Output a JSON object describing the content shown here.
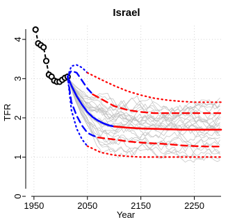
{
  "chart_data": {
    "type": "line",
    "title": "Israel",
    "xlabel": "Year",
    "ylabel": "TFR",
    "xlim": [
      1945,
      2300
    ],
    "ylim": [
      0,
      4.35
    ],
    "x_ticks": [
      1950,
      2050,
      2150,
      2250
    ],
    "y_ticks": [
      0,
      1,
      2,
      3,
      4
    ],
    "grid": true,
    "legend": "none",
    "colors": {
      "observed": "#000000",
      "trajectories": "#bdbdbd",
      "median_projection": "#0000ff",
      "median_extended": "#ff0000",
      "pi80_projection": "#0000ff",
      "pi80_extended": "#ff0000",
      "pi95_projection": "#0000ff",
      "pi95_extended": "#ff0000",
      "grid": "#d3d3d3"
    },
    "series": [
      {
        "role": "observed",
        "x": [
          1953,
          1958,
          1963,
          1968,
          1973,
          1978,
          1983,
          1988,
          1993,
          1998,
          2003,
          2008,
          2013
        ],
        "values": [
          4.25,
          3.9,
          3.85,
          3.8,
          3.45,
          3.1,
          3.05,
          2.95,
          2.92,
          2.92,
          2.97,
          3.02,
          3.05
        ]
      },
      {
        "role": "median_projection",
        "x": [
          2013,
          2020,
          2030,
          2040,
          2050,
          2060,
          2070,
          2080,
          2090,
          2100
        ],
        "values": [
          3.05,
          2.82,
          2.55,
          2.33,
          2.15,
          2.02,
          1.93,
          1.86,
          1.81,
          1.78
        ]
      },
      {
        "role": "median_extended",
        "x": [
          2100,
          2125,
          2150,
          2175,
          2200,
          2225,
          2250,
          2275,
          2300
        ],
        "values": [
          1.78,
          1.75,
          1.73,
          1.72,
          1.71,
          1.7,
          1.7,
          1.7,
          1.7
        ]
      },
      {
        "role": "pi80_upper_projection",
        "x": [
          2013,
          2020,
          2030,
          2040,
          2050,
          2060
        ],
        "values": [
          3.05,
          3.2,
          3.15,
          2.95,
          2.75,
          2.6
        ]
      },
      {
        "role": "pi80_upper_extended",
        "x": [
          2060,
          2080,
          2100,
          2125,
          2150,
          2175,
          2200,
          2225,
          2250,
          2275,
          2300
        ],
        "values": [
          2.6,
          2.45,
          2.3,
          2.2,
          2.15,
          2.12,
          2.12,
          2.12,
          2.12,
          2.12,
          2.12
        ]
      },
      {
        "role": "pi80_lower_projection",
        "x": [
          2013,
          2020,
          2030,
          2040,
          2050,
          2060,
          2070
        ],
        "values": [
          3.05,
          2.4,
          2.05,
          1.8,
          1.62,
          1.55,
          1.5
        ]
      },
      {
        "role": "pi80_lower_extended",
        "x": [
          2070,
          2100,
          2125,
          2150,
          2175,
          2200,
          2225,
          2250,
          2275,
          2300
        ],
        "values": [
          1.5,
          1.45,
          1.4,
          1.37,
          1.35,
          1.33,
          1.3,
          1.28,
          1.27,
          1.27
        ]
      },
      {
        "role": "pi95_upper_projection",
        "x": [
          2013,
          2020,
          2030,
          2040,
          2050
        ],
        "values": [
          3.05,
          3.32,
          3.35,
          3.28,
          3.15
        ]
      },
      {
        "role": "pi95_upper_extended",
        "x": [
          2050,
          2075,
          2100,
          2125,
          2150,
          2175,
          2200,
          2225,
          2250,
          2275,
          2300
        ],
        "values": [
          3.15,
          2.98,
          2.82,
          2.68,
          2.58,
          2.5,
          2.45,
          2.42,
          2.4,
          2.4,
          2.4
        ]
      },
      {
        "role": "pi95_lower_projection",
        "x": [
          2013,
          2020,
          2030,
          2040,
          2050
        ],
        "values": [
          3.05,
          2.2,
          1.72,
          1.45,
          1.28
        ]
      },
      {
        "role": "pi95_lower_extended",
        "x": [
          2050,
          2075,
          2100,
          2125,
          2150,
          2175,
          2200,
          2225,
          2250,
          2275,
          2300
        ],
        "values": [
          1.28,
          1.12,
          1.05,
          1.02,
          1.0,
          1.0,
          1.0,
          1.0,
          1.0,
          1.0,
          1.0
        ]
      }
    ]
  }
}
